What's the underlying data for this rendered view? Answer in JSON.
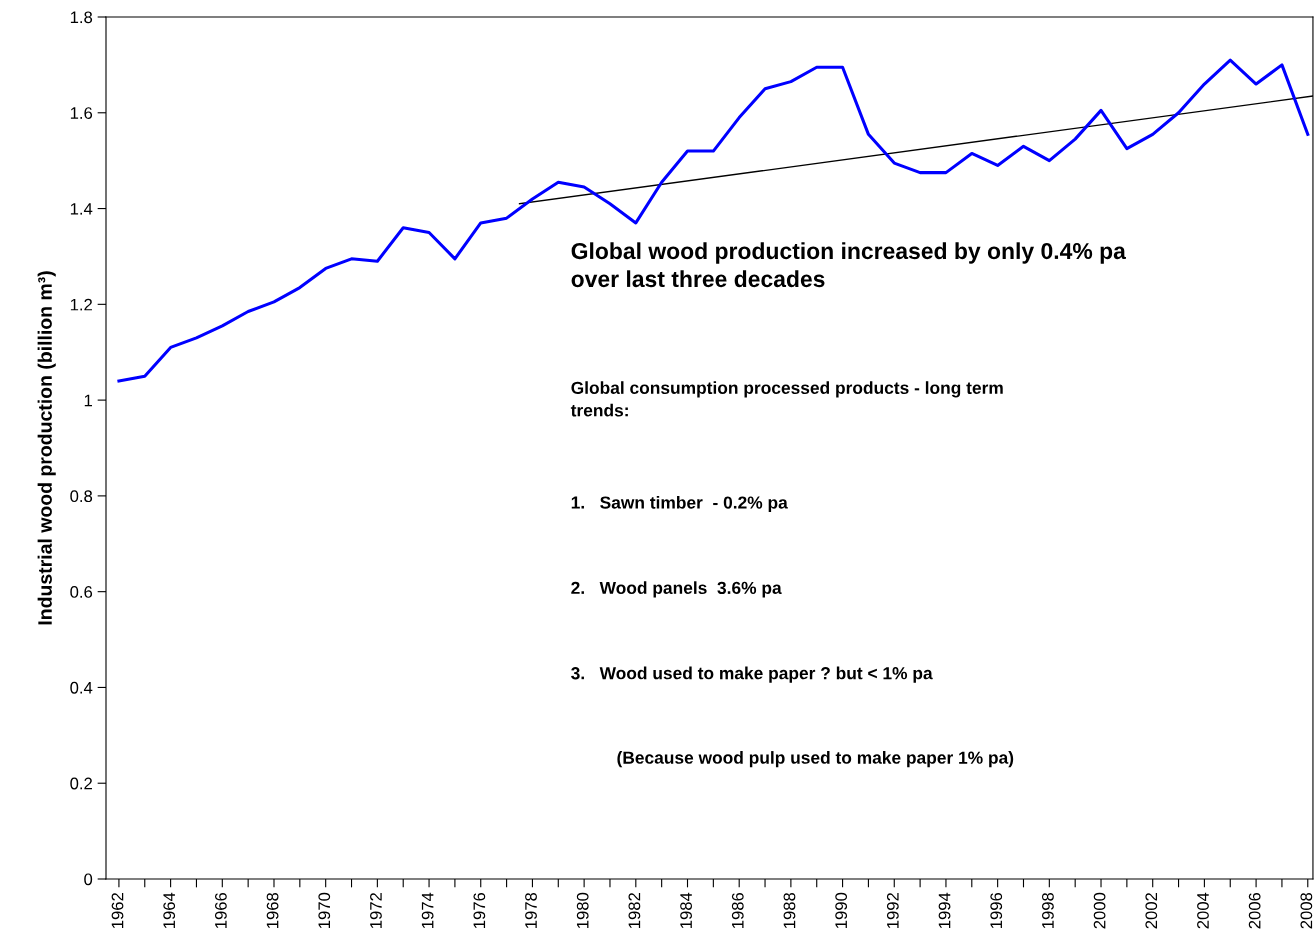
{
  "chart_data": {
    "type": "line",
    "ylabel": "Industrial wood production (billion m³)",
    "x": [
      1962,
      1963,
      1964,
      1965,
      1966,
      1967,
      1968,
      1969,
      1970,
      1971,
      1972,
      1973,
      1974,
      1975,
      1976,
      1977,
      1978,
      1979,
      1980,
      1981,
      1982,
      1983,
      1984,
      1985,
      1986,
      1987,
      1988,
      1989,
      1990,
      1991,
      1992,
      1993,
      1994,
      1995,
      1996,
      1997,
      1998,
      1999,
      2000,
      2001,
      2002,
      2003,
      2004,
      2005,
      2006,
      2007,
      2008
    ],
    "series": [
      {
        "color": "#0000ff",
        "values": [
          1.04,
          1.05,
          1.11,
          1.13,
          1.155,
          1.185,
          1.205,
          1.235,
          1.275,
          1.295,
          1.29,
          1.36,
          1.35,
          1.295,
          1.37,
          1.38,
          1.42,
          1.455,
          1.445,
          1.41,
          1.37,
          1.455,
          1.52,
          1.52,
          1.59,
          1.65,
          1.665,
          1.695,
          1.695,
          1.555,
          1.495,
          1.475,
          1.475,
          1.515,
          1.49,
          1.53,
          1.5,
          1.545,
          1.605,
          1.525,
          1.555,
          1.6,
          1.66,
          1.71,
          1.66,
          1.7,
          1.555
        ]
      },
      {
        "type": "line",
        "color": "#000000",
        "x": [
          1977.5,
          2008.2
        ],
        "values": [
          1.41,
          1.635
        ]
      }
    ],
    "xlim": [
      1961.5,
      2008.2
    ],
    "ylim": [
      0,
      1.8
    ],
    "xticks": [
      {
        "value": 1962,
        "label": "1962"
      },
      {
        "value": 1963,
        "label": null
      },
      {
        "value": 1964,
        "label": "1964"
      },
      {
        "value": 1965,
        "label": null
      },
      {
        "value": 1966,
        "label": "1966"
      },
      {
        "value": 1967,
        "label": null
      },
      {
        "value": 1968,
        "label": "1968"
      },
      {
        "value": 1969,
        "label": null
      },
      {
        "value": 1970,
        "label": "1970"
      },
      {
        "value": 1971,
        "label": null
      },
      {
        "value": 1972,
        "label": "1972"
      },
      {
        "value": 1973,
        "label": null
      },
      {
        "value": 1974,
        "label": "1974"
      },
      {
        "value": 1975,
        "label": null
      },
      {
        "value": 1976,
        "label": "1976"
      },
      {
        "value": 1977,
        "label": null
      },
      {
        "value": 1978,
        "label": "1978"
      },
      {
        "value": 1979,
        "label": null
      },
      {
        "value": 1980,
        "label": "1980"
      },
      {
        "value": 1981,
        "label": null
      },
      {
        "value": 1982,
        "label": "1982"
      },
      {
        "value": 1983,
        "label": null
      },
      {
        "value": 1984,
        "label": "1984"
      },
      {
        "value": 1985,
        "label": null
      },
      {
        "value": 1986,
        "label": "1986"
      },
      {
        "value": 1987,
        "label": null
      },
      {
        "value": 1988,
        "label": "1988"
      },
      {
        "value": 1989,
        "label": null
      },
      {
        "value": 1990,
        "label": "1990"
      },
      {
        "value": 1991,
        "label": null
      },
      {
        "value": 1992,
        "label": "1992"
      },
      {
        "value": 1993,
        "label": null
      },
      {
        "value": 1994,
        "label": "1994"
      },
      {
        "value": 1995,
        "label": null
      },
      {
        "value": 1996,
        "label": "1996"
      },
      {
        "value": 1997,
        "label": null
      },
      {
        "value": 1998,
        "label": "1998"
      },
      {
        "value": 1999,
        "label": null
      },
      {
        "value": 2000,
        "label": "2000"
      },
      {
        "value": 2001,
        "label": null
      },
      {
        "value": 2002,
        "label": "2002"
      },
      {
        "value": 2003,
        "label": null
      },
      {
        "value": 2004,
        "label": "2004"
      },
      {
        "value": 2005,
        "label": null
      },
      {
        "value": 2006,
        "label": "2006"
      },
      {
        "value": 2007,
        "label": null
      },
      {
        "value": 2008,
        "label": "2008"
      }
    ],
    "yticks": [
      0,
      0.2,
      0.4,
      0.6,
      0.8,
      1,
      1.2,
      1.4,
      1.6,
      1.8
    ],
    "grid": false,
    "legend": false,
    "marker": "none",
    "line_style": "solid",
    "annotations": [
      "Global wood production increased by only 0.4% pa\nover last three decades",
      "Global consumption processed products - long term\ntrends:",
      "1.   Sawn timber  - 0.2% pa",
      "2.   Wood panels  3.6% pa",
      "3.   Wood used to make paper ? but < 1% pa",
      "(Because wood pulp used to make paper 1% pa)"
    ]
  }
}
